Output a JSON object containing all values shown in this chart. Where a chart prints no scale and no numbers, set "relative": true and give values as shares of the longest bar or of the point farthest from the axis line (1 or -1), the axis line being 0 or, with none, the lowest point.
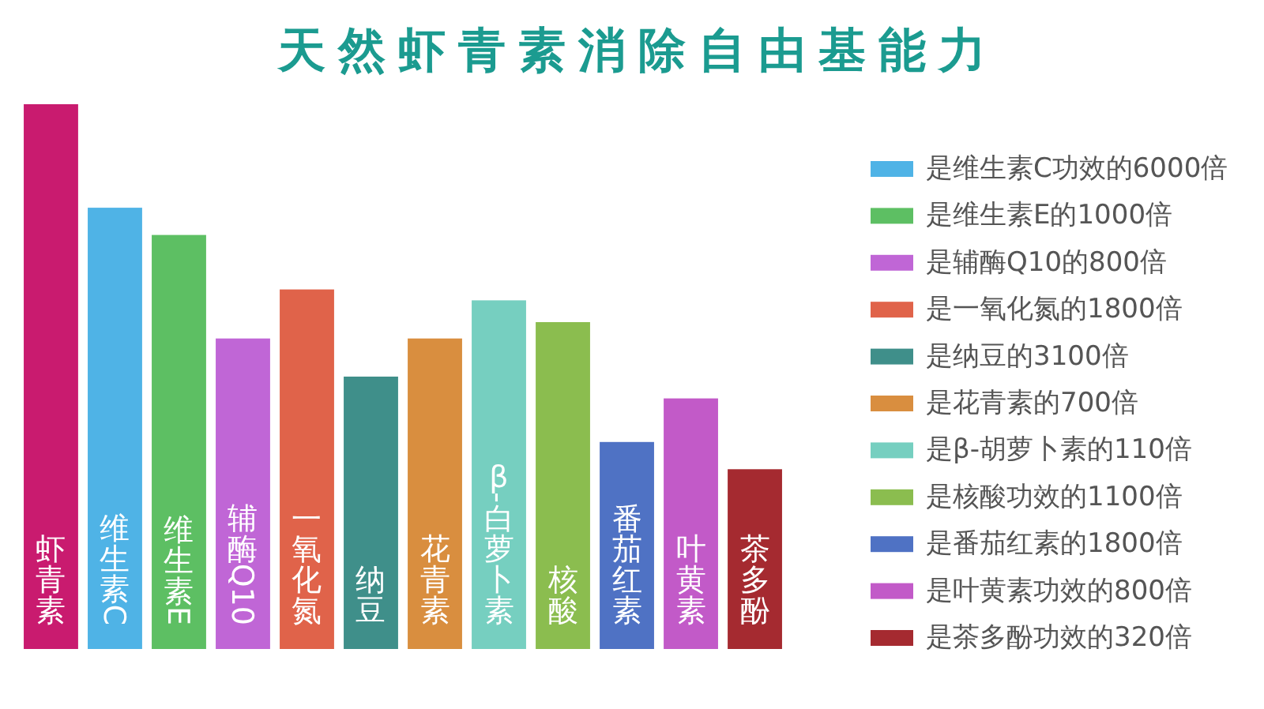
{
  "chart_data": {
    "type": "bar",
    "title": "天然虾青素消除自由基能力",
    "relative": true,
    "legend": "right",
    "categories": [
      "虾青素",
      "维生素C",
      "维生素E",
      "辅酶Q10",
      "一氧化氮",
      "纳豆",
      "花青素",
      "β-白萝卜素",
      "核酸",
      "番茄红素",
      "叶黄素",
      "茶多酚"
    ],
    "series": [
      {
        "color": "#c91b6f",
        "values": [
          1,
          null,
          null,
          null,
          null,
          null,
          null,
          null,
          null,
          null,
          null,
          null
        ]
      },
      {
        "name": "是维生素C功效的6000倍",
        "color": "#4fb3e6",
        "values": [
          null,
          0.81,
          null,
          null,
          null,
          null,
          null,
          null,
          null,
          null,
          null,
          null
        ]
      },
      {
        "name": "是维生素E的1000倍",
        "color": "#5dbf63",
        "values": [
          null,
          null,
          0.76,
          null,
          null,
          null,
          null,
          null,
          null,
          null,
          null,
          null
        ]
      },
      {
        "name": "是辅酶Q10的800倍",
        "color": "#c066d6",
        "values": [
          null,
          null,
          null,
          0.57,
          null,
          null,
          null,
          null,
          null,
          null,
          null,
          null
        ]
      },
      {
        "name": "是一氧化氮的1800倍",
        "color": "#e0634a",
        "values": [
          null,
          null,
          null,
          null,
          0.66,
          null,
          null,
          null,
          null,
          null,
          null,
          null
        ]
      },
      {
        "name": "是纳豆的3100倍",
        "color": "#3f8f8a",
        "values": [
          null,
          null,
          null,
          null,
          null,
          0.5,
          null,
          null,
          null,
          null,
          null,
          null
        ]
      },
      {
        "name": "是花青素的700倍",
        "color": "#d98e3f",
        "values": [
          null,
          null,
          null,
          null,
          null,
          null,
          0.57,
          null,
          null,
          null,
          null,
          null
        ]
      },
      {
        "name": "是β-胡萝卜素的110倍",
        "color": "#76cfc0",
        "values": [
          null,
          null,
          null,
          null,
          null,
          null,
          null,
          0.64,
          null,
          null,
          null,
          null
        ]
      },
      {
        "name": "是核酸功效的1100倍",
        "color": "#8bbd4f",
        "values": [
          null,
          null,
          null,
          null,
          null,
          null,
          null,
          null,
          0.6,
          null,
          null,
          null
        ]
      },
      {
        "name": "是番茄红素的1800倍",
        "color": "#4f72c4",
        "values": [
          null,
          null,
          null,
          null,
          null,
          null,
          null,
          null,
          null,
          0.38,
          null,
          null
        ]
      },
      {
        "name": "是叶黄素功效的800倍",
        "color": "#c25ac8",
        "values": [
          null,
          null,
          null,
          null,
          null,
          null,
          null,
          null,
          null,
          null,
          0.46,
          null
        ]
      },
      {
        "name": "是茶多酚功效的320倍",
        "color": "#a52a30",
        "values": [
          null,
          null,
          null,
          null,
          null,
          null,
          null,
          null,
          null,
          null,
          null,
          0.33
        ]
      }
    ]
  }
}
